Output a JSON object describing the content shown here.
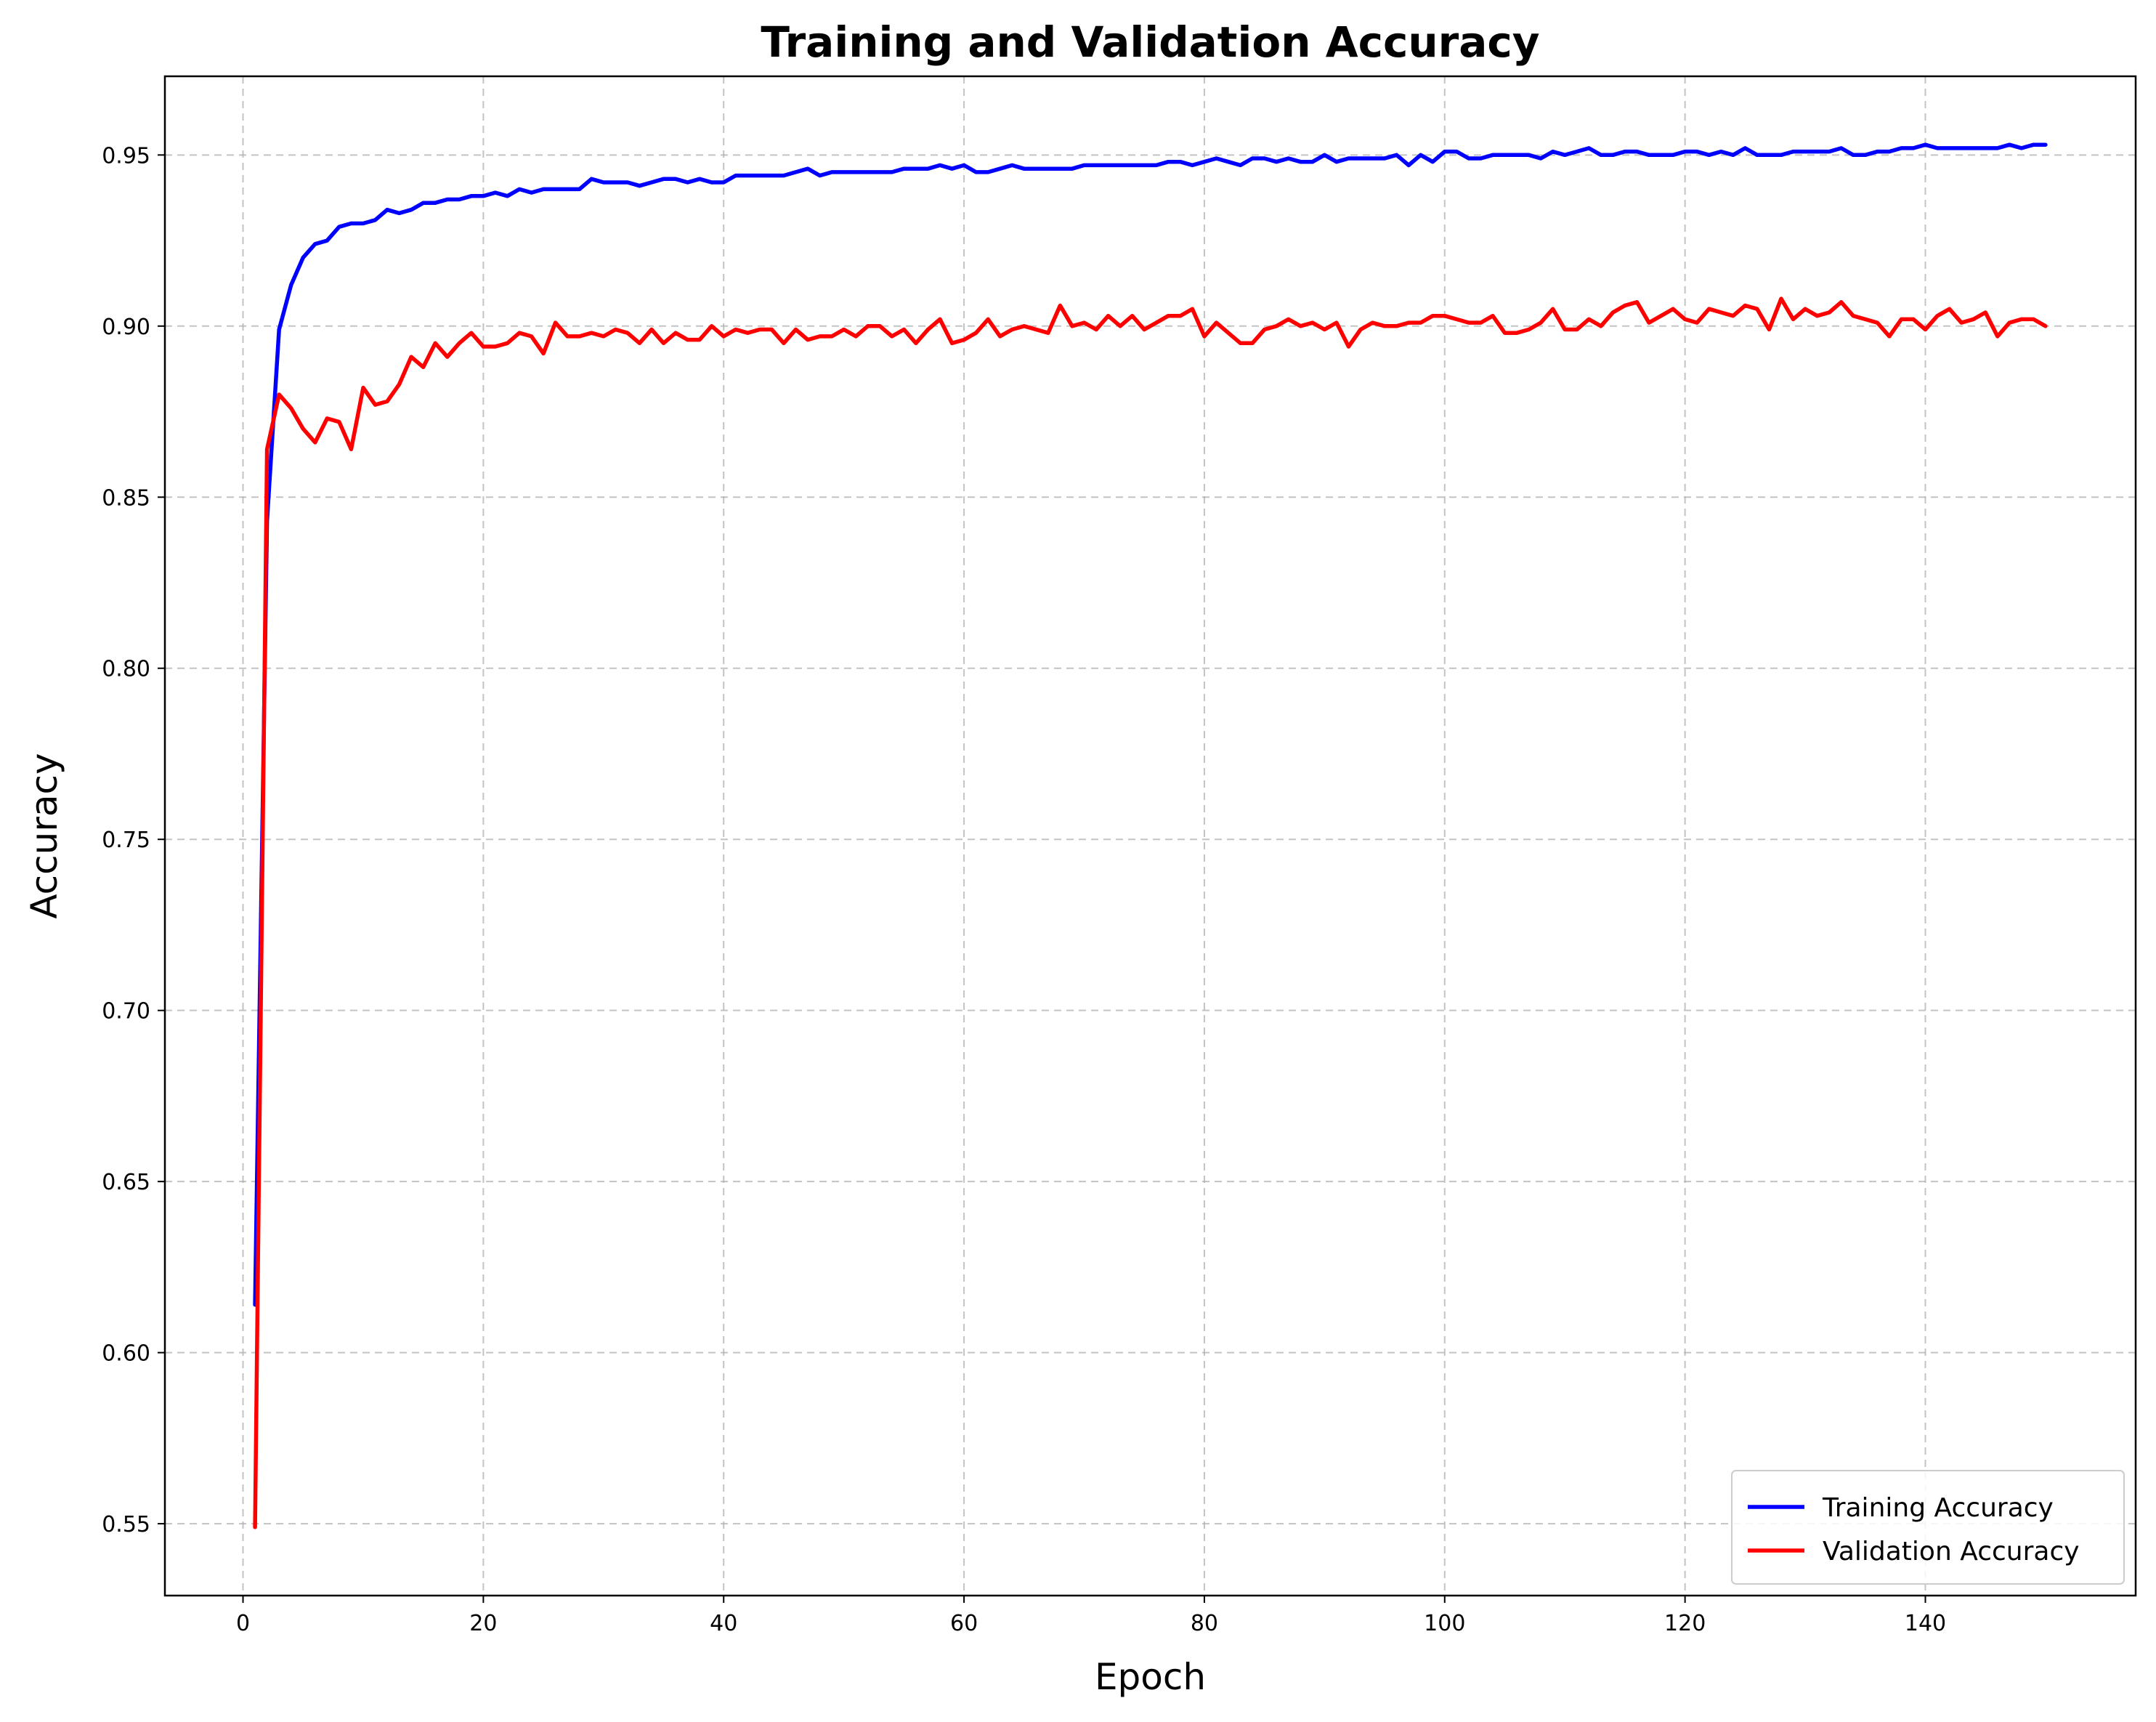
{
  "chart_data": {
    "type": "line",
    "title": "Training and Validation Accuracy",
    "xlabel": "Epoch",
    "ylabel": "Accuracy",
    "xlim": [
      -6.5,
      157.5
    ],
    "ylim": [
      0.529,
      0.973
    ],
    "xticks": [
      0,
      20,
      40,
      60,
      80,
      100,
      120,
      140
    ],
    "xtick_labels": [
      "0",
      "20",
      "40",
      "60",
      "80",
      "100",
      "120",
      "140"
    ],
    "yticks": [
      0.55,
      0.6,
      0.65,
      0.7,
      0.75,
      0.8,
      0.85,
      0.9,
      0.95
    ],
    "ytick_labels": [
      "0.55",
      "0.60",
      "0.65",
      "0.70",
      "0.75",
      "0.80",
      "0.85",
      "0.90",
      "0.95"
    ],
    "grid": true,
    "legend_position": "bottom-right",
    "series": [
      {
        "name": "Training Accuracy",
        "color": "#0000ff",
        "x": [
          1,
          2,
          3,
          4,
          5,
          6,
          7,
          8,
          9,
          10,
          11,
          12,
          13,
          14,
          15,
          16,
          17,
          18,
          19,
          20,
          21,
          22,
          23,
          24,
          25,
          26,
          27,
          28,
          29,
          30,
          31,
          32,
          33,
          34,
          35,
          36,
          37,
          38,
          39,
          40,
          41,
          42,
          43,
          44,
          45,
          46,
          47,
          48,
          49,
          50,
          51,
          52,
          53,
          54,
          55,
          56,
          57,
          58,
          59,
          60,
          61,
          62,
          63,
          64,
          65,
          66,
          67,
          68,
          69,
          70,
          71,
          72,
          73,
          74,
          75,
          76,
          77,
          78,
          79,
          80,
          81,
          82,
          83,
          84,
          85,
          86,
          87,
          88,
          89,
          90,
          91,
          92,
          93,
          94,
          95,
          96,
          97,
          98,
          99,
          100,
          101,
          102,
          103,
          104,
          105,
          106,
          107,
          108,
          109,
          110,
          111,
          112,
          113,
          114,
          115,
          116,
          117,
          118,
          119,
          120,
          121,
          122,
          123,
          124,
          125,
          126,
          127,
          128,
          129,
          130,
          131,
          132,
          133,
          134,
          135,
          136,
          137,
          138,
          139,
          140,
          141,
          142,
          143,
          144,
          145,
          146,
          147,
          148,
          149,
          150
        ],
        "y": [
          0.614,
          0.843,
          0.899,
          0.912,
          0.92,
          0.924,
          0.925,
          0.929,
          0.93,
          0.93,
          0.931,
          0.934,
          0.933,
          0.934,
          0.936,
          0.936,
          0.937,
          0.937,
          0.938,
          0.938,
          0.939,
          0.938,
          0.94,
          0.939,
          0.94,
          0.94,
          0.94,
          0.94,
          0.943,
          0.942,
          0.942,
          0.942,
          0.941,
          0.942,
          0.943,
          0.943,
          0.942,
          0.943,
          0.942,
          0.942,
          0.944,
          0.944,
          0.944,
          0.944,
          0.944,
          0.945,
          0.946,
          0.944,
          0.945,
          0.945,
          0.945,
          0.945,
          0.945,
          0.945,
          0.946,
          0.946,
          0.946,
          0.947,
          0.946,
          0.947,
          0.945,
          0.945,
          0.946,
          0.947,
          0.946,
          0.946,
          0.946,
          0.946,
          0.946,
          0.947,
          0.947,
          0.947,
          0.947,
          0.947,
          0.947,
          0.947,
          0.948,
          0.948,
          0.947,
          0.948,
          0.949,
          0.948,
          0.947,
          0.949,
          0.949,
          0.948,
          0.949,
          0.948,
          0.948,
          0.95,
          0.948,
          0.949,
          0.949,
          0.949,
          0.949,
          0.95,
          0.947,
          0.95,
          0.948,
          0.951,
          0.951,
          0.949,
          0.949,
          0.95,
          0.95,
          0.95,
          0.95,
          0.949,
          0.951,
          0.95,
          0.951,
          0.952,
          0.95,
          0.95,
          0.951,
          0.951,
          0.95,
          0.95,
          0.95,
          0.951,
          0.951,
          0.95,
          0.951,
          0.95,
          0.952,
          0.95,
          0.95,
          0.95,
          0.951,
          0.951,
          0.951,
          0.951,
          0.952,
          0.95,
          0.95,
          0.951,
          0.951,
          0.952,
          0.952,
          0.953,
          0.952,
          0.952,
          0.952,
          0.952,
          0.952,
          0.952,
          0.953,
          0.952,
          0.953,
          0.953
        ]
      },
      {
        "name": "Validation Accuracy",
        "color": "#ff0000",
        "x": [
          1,
          2,
          3,
          4,
          5,
          6,
          7,
          8,
          9,
          10,
          11,
          12,
          13,
          14,
          15,
          16,
          17,
          18,
          19,
          20,
          21,
          22,
          23,
          24,
          25,
          26,
          27,
          28,
          29,
          30,
          31,
          32,
          33,
          34,
          35,
          36,
          37,
          38,
          39,
          40,
          41,
          42,
          43,
          44,
          45,
          46,
          47,
          48,
          49,
          50,
          51,
          52,
          53,
          54,
          55,
          56,
          57,
          58,
          59,
          60,
          61,
          62,
          63,
          64,
          65,
          66,
          67,
          68,
          69,
          70,
          71,
          72,
          73,
          74,
          75,
          76,
          77,
          78,
          79,
          80,
          81,
          82,
          83,
          84,
          85,
          86,
          87,
          88,
          89,
          90,
          91,
          92,
          93,
          94,
          95,
          96,
          97,
          98,
          99,
          100,
          101,
          102,
          103,
          104,
          105,
          106,
          107,
          108,
          109,
          110,
          111,
          112,
          113,
          114,
          115,
          116,
          117,
          118,
          119,
          120,
          121,
          122,
          123,
          124,
          125,
          126,
          127,
          128,
          129,
          130,
          131,
          132,
          133,
          134,
          135,
          136,
          137,
          138,
          139,
          140,
          141,
          142,
          143,
          144,
          145,
          146,
          147,
          148,
          149,
          150
        ],
        "y": [
          0.549,
          0.864,
          0.88,
          0.876,
          0.87,
          0.866,
          0.873,
          0.872,
          0.864,
          0.882,
          0.877,
          0.878,
          0.883,
          0.891,
          0.888,
          0.895,
          0.891,
          0.895,
          0.898,
          0.894,
          0.894,
          0.895,
          0.898,
          0.897,
          0.892,
          0.901,
          0.897,
          0.897,
          0.898,
          0.897,
          0.899,
          0.898,
          0.895,
          0.899,
          0.895,
          0.898,
          0.896,
          0.896,
          0.9,
          0.897,
          0.899,
          0.898,
          0.899,
          0.899,
          0.895,
          0.899,
          0.896,
          0.897,
          0.897,
          0.899,
          0.897,
          0.9,
          0.9,
          0.897,
          0.899,
          0.895,
          0.899,
          0.902,
          0.895,
          0.896,
          0.898,
          0.902,
          0.897,
          0.899,
          0.9,
          0.899,
          0.898,
          0.906,
          0.9,
          0.901,
          0.899,
          0.903,
          0.9,
          0.903,
          0.899,
          0.901,
          0.903,
          0.903,
          0.905,
          0.897,
          0.901,
          0.898,
          0.895,
          0.895,
          0.899,
          0.9,
          0.902,
          0.9,
          0.901,
          0.899,
          0.901,
          0.894,
          0.899,
          0.901,
          0.9,
          0.9,
          0.901,
          0.901,
          0.903,
          0.903,
          0.902,
          0.901,
          0.901,
          0.903,
          0.898,
          0.898,
          0.899,
          0.901,
          0.905,
          0.899,
          0.899,
          0.902,
          0.9,
          0.904,
          0.906,
          0.907,
          0.901,
          0.903,
          0.905,
          0.902,
          0.901,
          0.905,
          0.904,
          0.903,
          0.906,
          0.905,
          0.899,
          0.908,
          0.902,
          0.905,
          0.903,
          0.904,
          0.907,
          0.903,
          0.902,
          0.901,
          0.897,
          0.902,
          0.902,
          0.899,
          0.903,
          0.905,
          0.901,
          0.902,
          0.904,
          0.897,
          0.901,
          0.902,
          0.902,
          0.9
        ]
      }
    ]
  }
}
